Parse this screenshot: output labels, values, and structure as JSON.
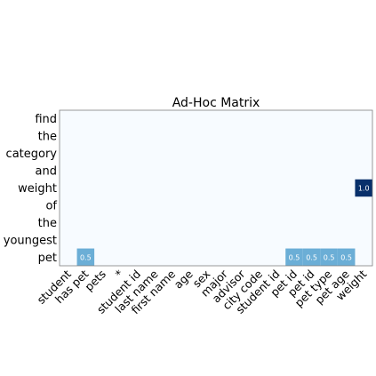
{
  "chart_data": {
    "type": "heatmap",
    "title": "Ad-Hoc Matrix",
    "y_labels": [
      "find",
      "the",
      "category",
      "and",
      "weight",
      "of",
      "the",
      "youngest",
      "pet"
    ],
    "x_labels": [
      "student",
      "has pet",
      "pets",
      "*",
      "student id",
      "last name",
      "first name",
      "age",
      "sex",
      "major",
      "advisor",
      "city code",
      "student id",
      "pet id",
      "pet id",
      "pet type",
      "pet age",
      "weight"
    ],
    "cells": [
      {
        "row": 4,
        "col": 17,
        "value": 1.0,
        "label": "1.0"
      },
      {
        "row": 8,
        "col": 1,
        "value": 0.5,
        "label": "0.5"
      },
      {
        "row": 8,
        "col": 13,
        "value": 0.5,
        "label": "0.5"
      },
      {
        "row": 8,
        "col": 14,
        "value": 0.5,
        "label": "0.5"
      },
      {
        "row": 8,
        "col": 15,
        "value": 0.5,
        "label": "0.5"
      },
      {
        "row": 8,
        "col": 16,
        "value": 0.5,
        "label": "0.5"
      }
    ],
    "value_range": [
      0,
      1
    ],
    "colormap": {
      "low": "#f7fbff",
      "mid": "#6baed6",
      "high": "#08306b"
    },
    "grid": false,
    "legend": "none"
  }
}
